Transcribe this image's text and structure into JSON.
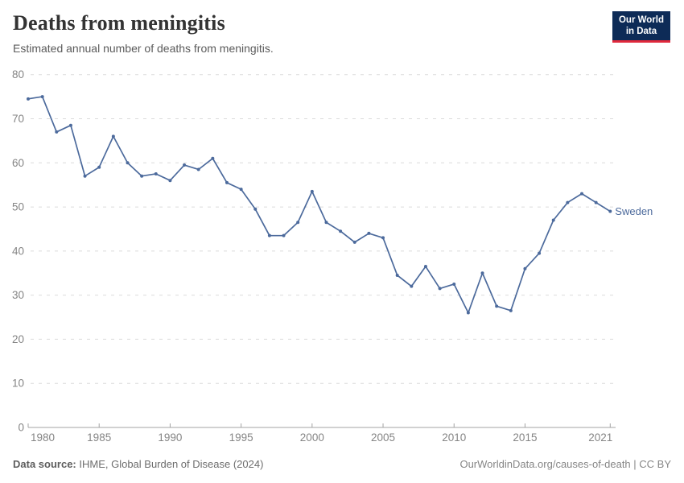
{
  "header": {
    "title": "Deaths from meningitis",
    "subtitle": "Estimated annual number of deaths from meningitis.",
    "logo": {
      "line1": "Our World",
      "line2": "in Data"
    }
  },
  "colors": {
    "series_blue": "#4C6A9C",
    "logo_bg": "#0d2b57",
    "logo_stripe": "#e0293c",
    "gridline": "#dbdbdb",
    "axis_line": "#a3a3a3",
    "tick_label": "#858585",
    "title_text": "#333333",
    "subtitle_text": "#5b5b5b"
  },
  "chart_data": {
    "type": "line",
    "title": "Deaths from meningitis",
    "subtitle": "Estimated annual number of deaths from meningitis.",
    "xlabel": "",
    "ylabel": "",
    "xlim": [
      1980,
      2021
    ],
    "ylim": [
      0,
      80
    ],
    "yticks": [
      0,
      10,
      20,
      30,
      40,
      50,
      60,
      70,
      80
    ],
    "xticks": [
      1980,
      1985,
      1990,
      1995,
      2000,
      2005,
      2010,
      2015,
      2021
    ],
    "grid": "horizontal-dashed",
    "legend_position": "end-of-line-label",
    "end_label": "Sweden",
    "series": [
      {
        "name": "Sweden",
        "color": "#4C6A9C",
        "x": [
          1980,
          1981,
          1982,
          1983,
          1984,
          1985,
          1986,
          1987,
          1988,
          1989,
          1990,
          1991,
          1992,
          1993,
          1994,
          1995,
          1996,
          1997,
          1998,
          1999,
          2000,
          2001,
          2002,
          2003,
          2004,
          2005,
          2006,
          2007,
          2008,
          2009,
          2010,
          2011,
          2012,
          2013,
          2014,
          2015,
          2016,
          2017,
          2018,
          2019,
          2020,
          2021
        ],
        "values": [
          74.5,
          75,
          67,
          68.5,
          57,
          59,
          66,
          60,
          57,
          57.5,
          56,
          59.5,
          58.5,
          61,
          55.5,
          54,
          49.5,
          43.5,
          43.5,
          46.5,
          53.5,
          46.5,
          44.5,
          42,
          44,
          43,
          34.5,
          32,
          36.5,
          31.5,
          32.5,
          26,
          35,
          27.5,
          26.5,
          36,
          39.5,
          47,
          51,
          53,
          51,
          49
        ]
      }
    ]
  },
  "footer": {
    "source_label": "Data source:",
    "source_rest": " IHME, Global Burden of Disease (2024)",
    "right_text": "OurWorldinData.org/causes-of-death | CC BY"
  }
}
